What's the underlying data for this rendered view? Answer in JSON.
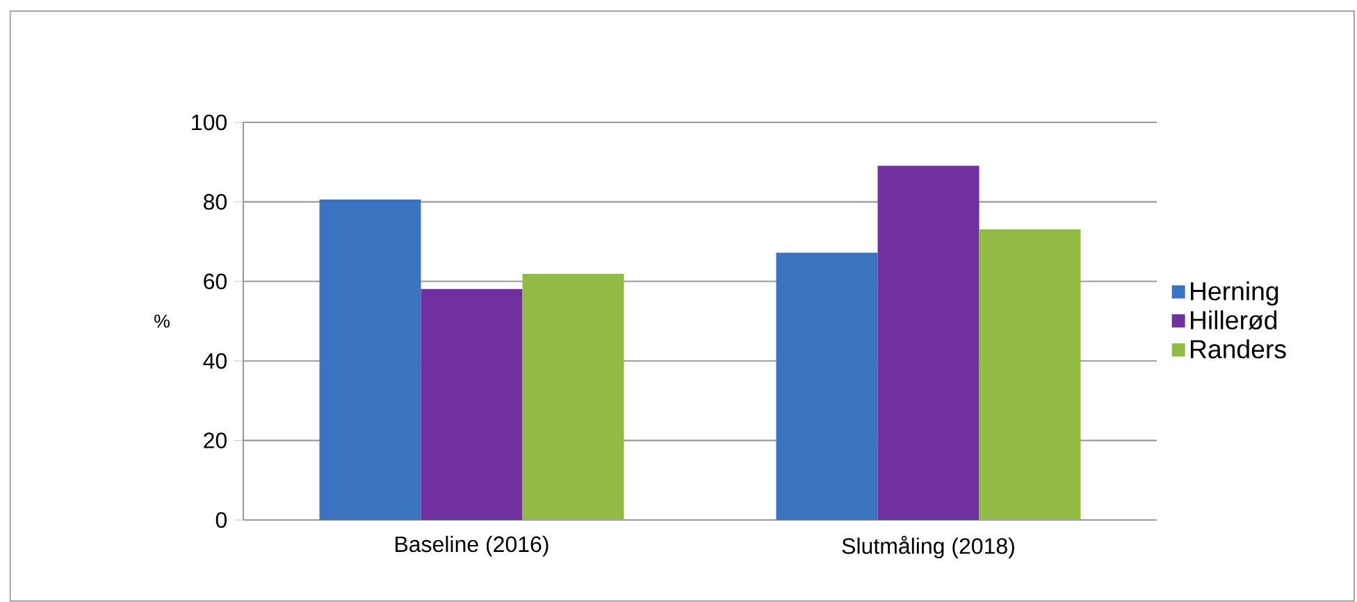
{
  "chart_data": {
    "type": "bar",
    "ylabel": "%",
    "categories": [
      "Baseline (2016)",
      "Slutmåling (2018)"
    ],
    "series": [
      {
        "name": "Herning",
        "color": "#3a74c0",
        "values": [
          80.6,
          67.2
        ]
      },
      {
        "name": "Hillerød",
        "color": "#7030a0",
        "values": [
          58.1,
          89.1
        ]
      },
      {
        "name": "Randers",
        "color": "#92bb45",
        "values": [
          61.9,
          73.1
        ]
      }
    ],
    "ylim": [
      0,
      100
    ],
    "yticks": [
      0,
      20,
      40,
      60,
      80,
      100
    ],
    "grid": "y",
    "legend": "right"
  }
}
